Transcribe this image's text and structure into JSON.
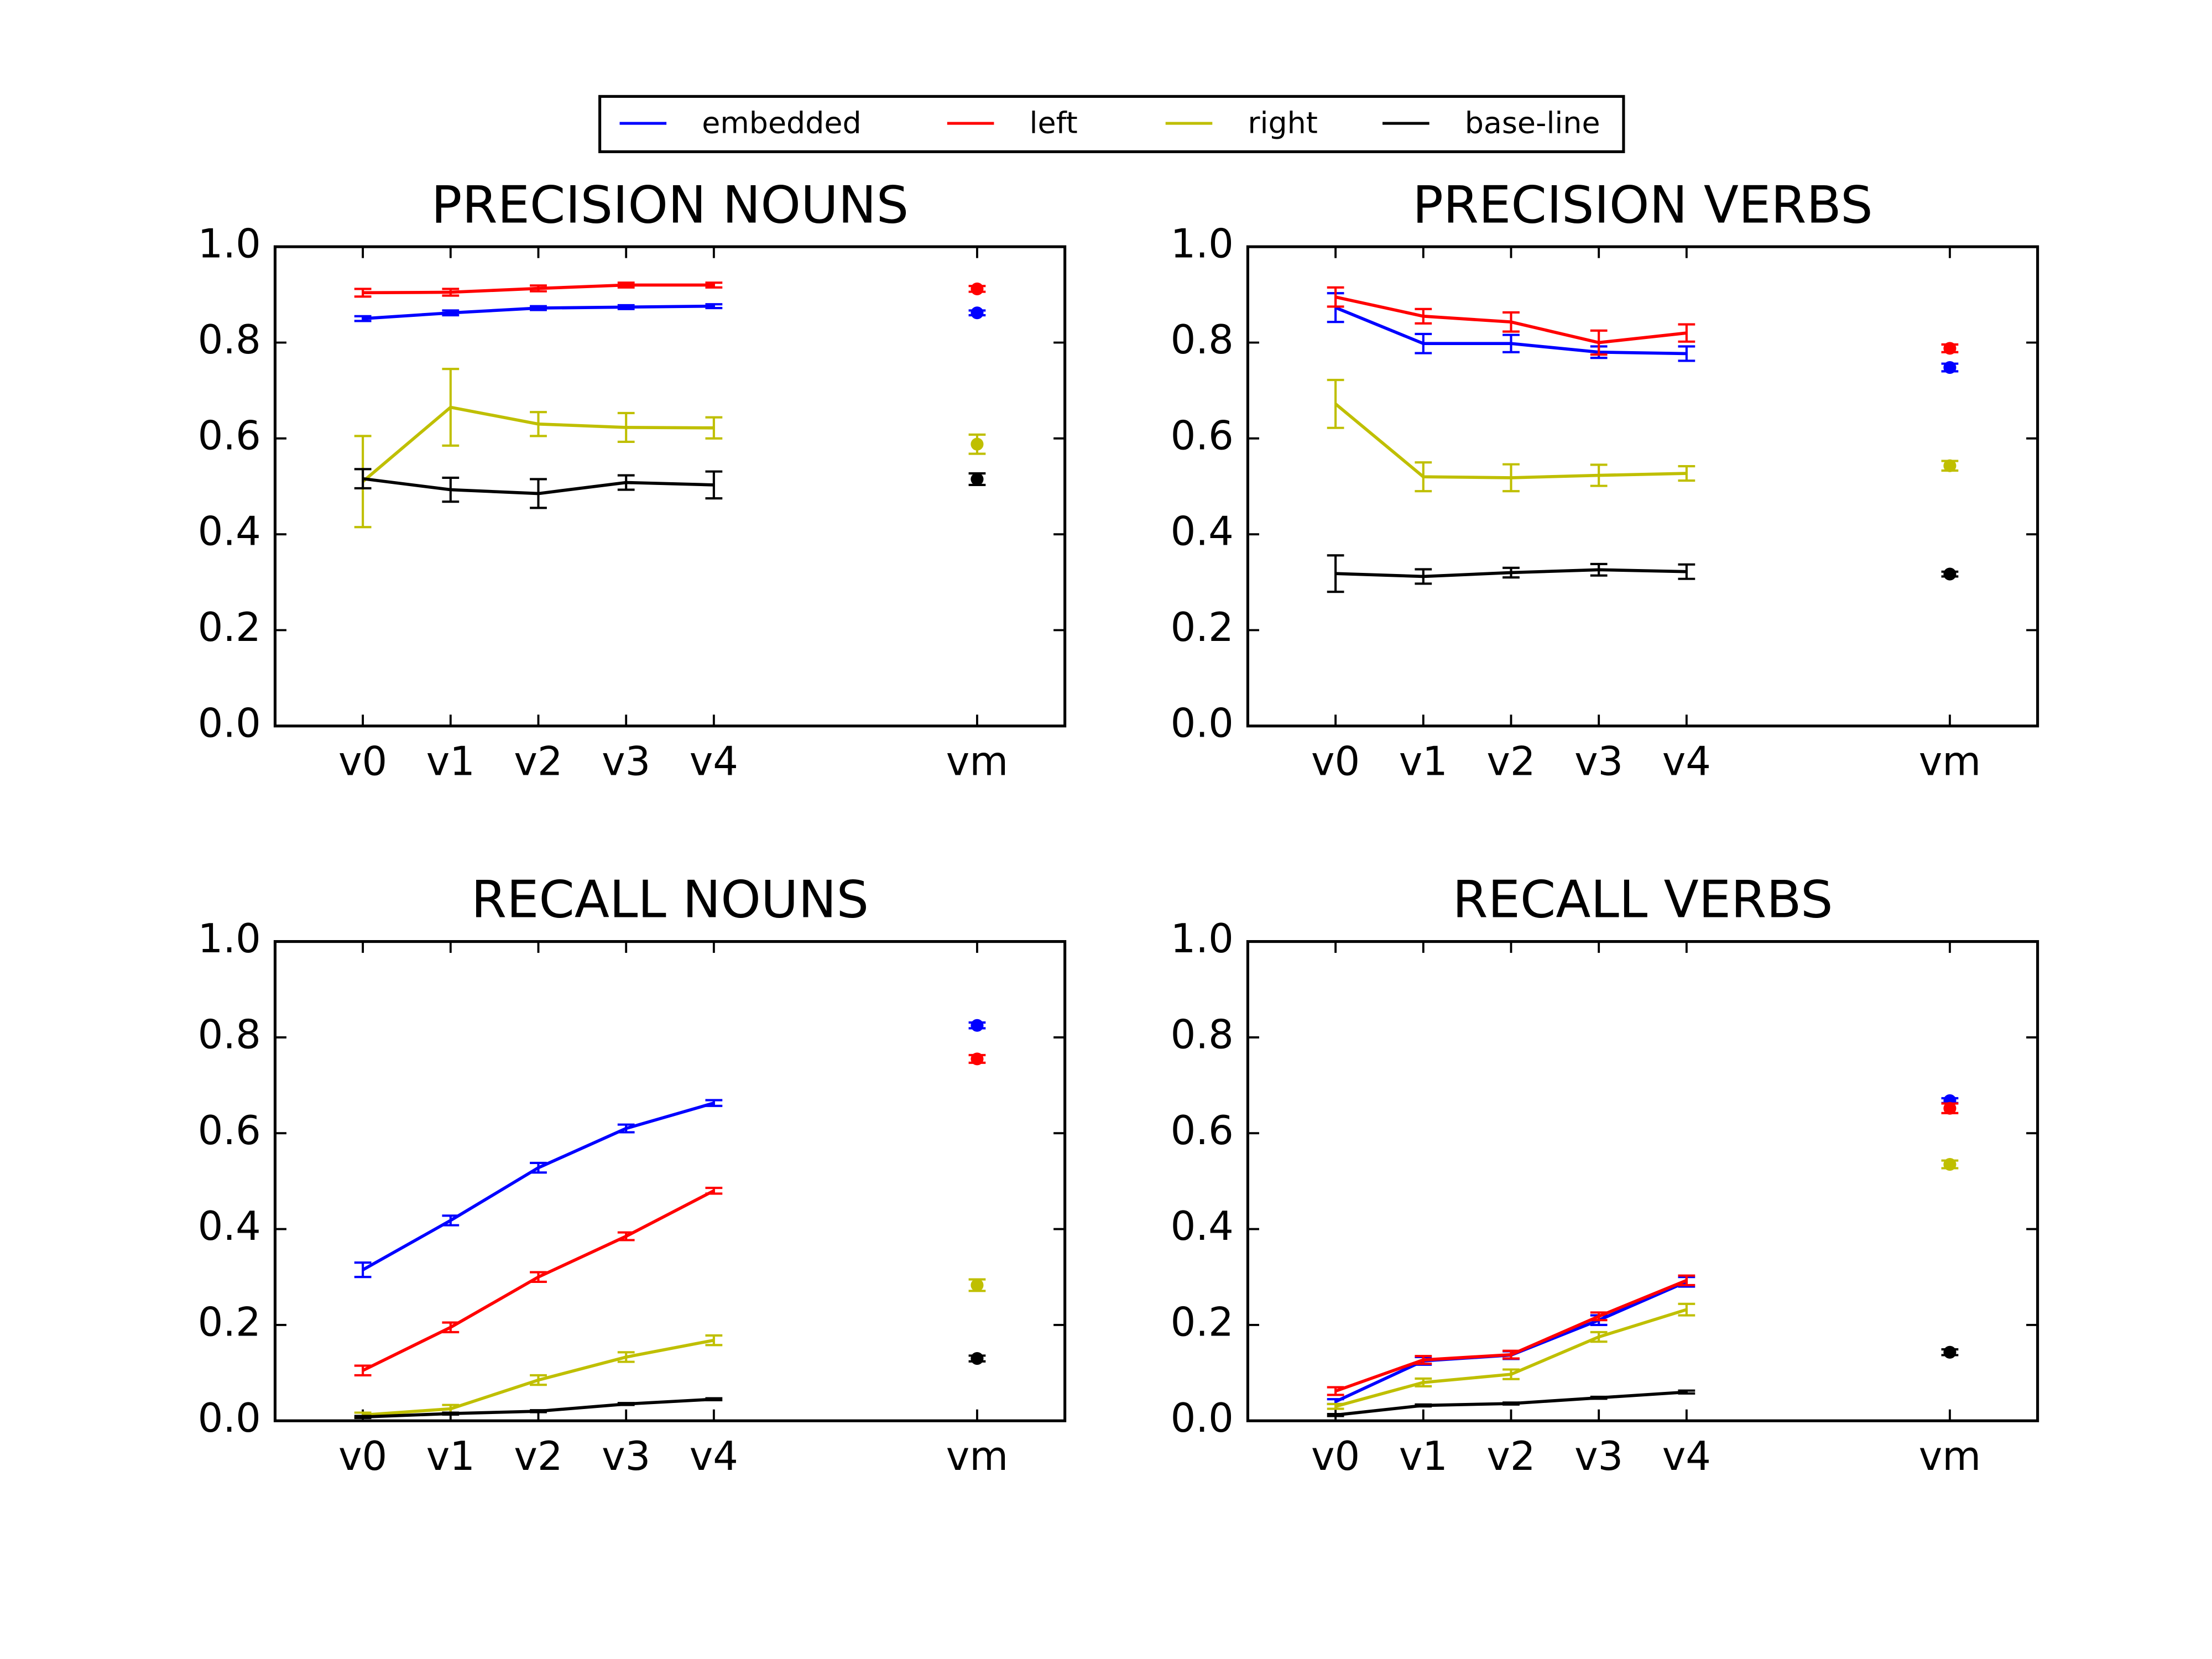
{
  "legend": {
    "series": [
      {
        "name": "embedded",
        "color": "#0000ff"
      },
      {
        "name": "left",
        "color": "#ff0000"
      },
      {
        "name": "right",
        "color": "#bfbf00"
      },
      {
        "name": "base-line",
        "color": "#000000"
      }
    ]
  },
  "chart_data": [
    {
      "type": "errorbar-line",
      "title": "PRECISION NOUNS",
      "x": [
        0,
        1,
        2,
        3,
        4
      ],
      "xticks": [
        {
          "value": 0,
          "label": "v0"
        },
        {
          "value": 1,
          "label": "v1"
        },
        {
          "value": 2,
          "label": "v2"
        },
        {
          "value": 3,
          "label": "v3"
        },
        {
          "value": 4,
          "label": "v4"
        },
        {
          "value": 7,
          "label": "vm"
        }
      ],
      "xlim": [
        -1,
        8
      ],
      "ylim": [
        0,
        1
      ],
      "yticks": [
        {
          "value": 0,
          "label": "0.0"
        },
        0.2,
        0.4,
        0.6,
        0.8,
        {
          "value": 1,
          "label": "1.0"
        }
      ],
      "series": [
        {
          "values": [
            0.85,
            0.862,
            0.872,
            0.874,
            0.876
          ],
          "errors": [
            0.005,
            0.005,
            0.004,
            0.004,
            0.004
          ],
          "vm_value": 0.862,
          "vm_error": 0.005
        },
        {
          "values": [
            0.904,
            0.905,
            0.913,
            0.92,
            0.92
          ],
          "errors": [
            0.008,
            0.007,
            0.006,
            0.005,
            0.005
          ],
          "vm_value": 0.912,
          "vm_error": 0.006
        },
        {
          "values": [
            0.51,
            0.665,
            0.63,
            0.623,
            0.622
          ],
          "errors": [
            0.095,
            0.08,
            0.025,
            0.03,
            0.022
          ],
          "vm_value": 0.588,
          "vm_error": 0.02
        },
        {
          "values": [
            0.516,
            0.493,
            0.485,
            0.508,
            0.503
          ],
          "errors": [
            0.02,
            0.025,
            0.03,
            0.015,
            0.028
          ],
          "vm_value": 0.515,
          "vm_error": 0.012
        }
      ]
    },
    {
      "type": "errorbar-line",
      "title": "PRECISION VERBS",
      "x": [
        0,
        1,
        2,
        3,
        4
      ],
      "xticks": [
        {
          "value": 0,
          "label": "v0"
        },
        {
          "value": 1,
          "label": "v1"
        },
        {
          "value": 2,
          "label": "v2"
        },
        {
          "value": 3,
          "label": "v3"
        },
        {
          "value": 4,
          "label": "v4"
        },
        {
          "value": 7,
          "label": "vm"
        }
      ],
      "xlim": [
        -1,
        8
      ],
      "ylim": [
        0,
        1
      ],
      "yticks": [
        {
          "value": 0,
          "label": "0.0"
        },
        0.2,
        0.4,
        0.6,
        0.8,
        {
          "value": 1,
          "label": "1.0"
        }
      ],
      "series": [
        {
          "values": [
            0.873,
            0.798,
            0.798,
            0.78,
            0.777
          ],
          "errors": [
            0.03,
            0.02,
            0.018,
            0.012,
            0.015
          ],
          "vm_value": 0.748,
          "vm_error": 0.008
        },
        {
          "values": [
            0.895,
            0.855,
            0.843,
            0.8,
            0.82
          ],
          "errors": [
            0.02,
            0.015,
            0.02,
            0.025,
            0.018
          ],
          "vm_value": 0.788,
          "vm_error": 0.008
        },
        {
          "values": [
            0.672,
            0.52,
            0.518,
            0.523,
            0.527
          ],
          "errors": [
            0.05,
            0.03,
            0.028,
            0.022,
            0.015
          ],
          "vm_value": 0.543,
          "vm_error": 0.01
        },
        {
          "values": [
            0.318,
            0.312,
            0.32,
            0.326,
            0.322
          ],
          "errors": [
            0.038,
            0.015,
            0.01,
            0.012,
            0.015
          ],
          "vm_value": 0.317,
          "vm_error": 0.005
        }
      ]
    },
    {
      "type": "errorbar-line",
      "title": "RECALL NOUNS",
      "x": [
        0,
        1,
        2,
        3,
        4
      ],
      "xticks": [
        {
          "value": 0,
          "label": "v0"
        },
        {
          "value": 1,
          "label": "v1"
        },
        {
          "value": 2,
          "label": "v2"
        },
        {
          "value": 3,
          "label": "v3"
        },
        {
          "value": 4,
          "label": "v4"
        },
        {
          "value": 7,
          "label": "vm"
        }
      ],
      "xlim": [
        -1,
        8
      ],
      "ylim": [
        0,
        1
      ],
      "yticks": [
        {
          "value": 0,
          "label": "0.0"
        },
        0.2,
        0.4,
        0.6,
        0.8,
        {
          "value": 1,
          "label": "1.0"
        }
      ],
      "series": [
        {
          "values": [
            0.315,
            0.418,
            0.528,
            0.61,
            0.663
          ],
          "errors": [
            0.015,
            0.01,
            0.01,
            0.008,
            0.006
          ],
          "vm_value": 0.825,
          "vm_error": 0.006
        },
        {
          "values": [
            0.105,
            0.195,
            0.3,
            0.385,
            0.48
          ],
          "errors": [
            0.01,
            0.01,
            0.01,
            0.008,
            0.006
          ],
          "vm_value": 0.755,
          "vm_error": 0.008
        },
        {
          "values": [
            0.012,
            0.025,
            0.085,
            0.133,
            0.168
          ],
          "errors": [
            0.005,
            0.008,
            0.01,
            0.01,
            0.01
          ],
          "vm_value": 0.283,
          "vm_error": 0.012
        },
        {
          "values": [
            0.008,
            0.015,
            0.02,
            0.035,
            0.045
          ],
          "errors": [
            0.002,
            0.002,
            0.002,
            0.002,
            0.002
          ],
          "vm_value": 0.13,
          "vm_error": 0.006
        }
      ]
    },
    {
      "type": "errorbar-line",
      "title": "RECALL VERBS",
      "x": [
        0,
        1,
        2,
        3,
        4
      ],
      "xticks": [
        {
          "value": 0,
          "label": "v0"
        },
        {
          "value": 1,
          "label": "v1"
        },
        {
          "value": 2,
          "label": "v2"
        },
        {
          "value": 3,
          "label": "v3"
        },
        {
          "value": 4,
          "label": "v4"
        },
        {
          "value": 7,
          "label": "vm"
        }
      ],
      "xlim": [
        -1,
        8
      ],
      "ylim": [
        0,
        1
      ],
      "yticks": [
        {
          "value": 0,
          "label": "0.0"
        },
        0.2,
        0.4,
        0.6,
        0.8,
        {
          "value": 1,
          "label": "1.0"
        }
      ],
      "series": [
        {
          "values": [
            0.04,
            0.125,
            0.137,
            0.21,
            0.29
          ],
          "errors": [
            0.005,
            0.008,
            0.008,
            0.01,
            0.01
          ],
          "vm_value": 0.668,
          "vm_error": 0.005
        },
        {
          "values": [
            0.062,
            0.127,
            0.138,
            0.218,
            0.293
          ],
          "errors": [
            0.008,
            0.008,
            0.008,
            0.008,
            0.01
          ],
          "vm_value": 0.652,
          "vm_error": 0.01
        },
        {
          "values": [
            0.03,
            0.08,
            0.097,
            0.175,
            0.232
          ],
          "errors": [
            0.005,
            0.008,
            0.01,
            0.01,
            0.012
          ],
          "vm_value": 0.535,
          "vm_error": 0.008
        },
        {
          "values": [
            0.012,
            0.032,
            0.036,
            0.048,
            0.06
          ],
          "errors": [
            0.002,
            0.002,
            0.002,
            0.002,
            0.003
          ],
          "vm_value": 0.143,
          "vm_error": 0.006
        }
      ]
    }
  ]
}
